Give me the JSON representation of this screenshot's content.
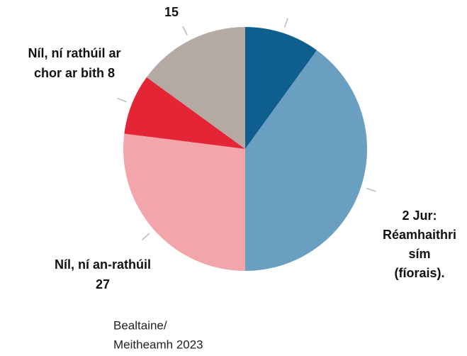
{
  "chart_data": {
    "type": "pie",
    "categories": [
      null,
      [
        "2 Jur:",
        "Réamhaithri",
        "sím",
        "(fíorais)."
      ],
      [
        "Níl, ní an-rathúil",
        "27"
      ],
      [
        "Níl, ní rathúil ar",
        "chor ar bith 8"
      ],
      [
        "15"
      ]
    ],
    "values": [
      10,
      40,
      27,
      8,
      15
    ],
    "colors": [
      "#0e5f8e",
      "#6b9fc1",
      "#f2a5ab",
      "#e32535",
      "#b5aaa3"
    ],
    "note": [
      "Bealtaine/",
      "Meitheamh 2023"
    ]
  }
}
